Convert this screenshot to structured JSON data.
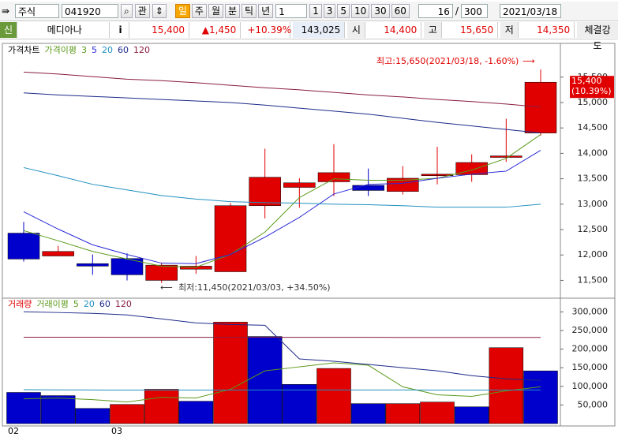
{
  "toolbar": {
    "market": "주식",
    "code": "041920",
    "search_btn": "관",
    "periods": [
      "일",
      "주",
      "월",
      "분",
      "틱",
      "년"
    ],
    "interval": "1",
    "intervals": [
      "1",
      "3",
      "5",
      "10",
      "30",
      "60"
    ],
    "count": "16",
    "separator": "/",
    "total": "300",
    "date": "2021/03/18"
  },
  "quote": {
    "badge": "신",
    "name": "메디아나",
    "info": "i",
    "price": "15,400",
    "change": "▲1,450",
    "rate": "+10.39%",
    "volume": "143,025",
    "open_label": "시",
    "open": "14,400",
    "high_label": "고",
    "high": "15,650",
    "low_label": "저",
    "low": "14,350",
    "strength": "체결강도"
  },
  "chart_data": [
    {
      "type": "candlestick",
      "title": "가격차트",
      "legend_title": "가격이평",
      "open": [
        12430,
        11980,
        11830,
        11930,
        11500,
        11720,
        11670,
        12970,
        13330,
        13440,
        13370,
        13250,
        13560,
        13580,
        13920,
        14400
      ],
      "high": [
        12650,
        12180,
        12010,
        12030,
        11850,
        11980,
        13020,
        14090,
        13510,
        14180,
        13700,
        13750,
        14130,
        13980,
        14680,
        15650
      ],
      "low": [
        11870,
        11980,
        11610,
        11500,
        11450,
        11630,
        11670,
        12720,
        12930,
        13160,
        13160,
        13190,
        13390,
        13440,
        13830,
        14350
      ],
      "close": [
        11920,
        12070,
        11780,
        11610,
        11800,
        11780,
        12970,
        13530,
        13420,
        13620,
        13270,
        13510,
        13590,
        13820,
        13950,
        15400
      ],
      "up_color": "#e00000",
      "down_color": "#0000cc",
      "series": [
        {
          "name": "3",
          "color": "#5a9a1a",
          "values": [
            12480,
            12280,
            12070,
            11920,
            11780,
            11760,
            12010,
            12450,
            13130,
            13500,
            13470,
            13470,
            13510,
            13670,
            13900,
            14370
          ]
        },
        {
          "name": "5",
          "color": "#2a2ad8",
          "values": [
            12850,
            12510,
            12200,
            12010,
            11840,
            11830,
            12010,
            12350,
            12740,
            13200,
            13390,
            13410,
            13510,
            13590,
            13650,
            14060
          ]
        },
        {
          "name": "20",
          "color": "#2090c0",
          "values": [
            13720,
            13560,
            13390,
            13280,
            13170,
            13100,
            13050,
            13030,
            13020,
            13000,
            12990,
            12970,
            12940,
            12940,
            12940,
            13000
          ]
        },
        {
          "name": "60",
          "color": "#1c2a8a",
          "values": [
            15190,
            15150,
            15120,
            15090,
            15060,
            15030,
            15000,
            14950,
            14890,
            14830,
            14770,
            14690,
            14610,
            14540,
            14470,
            14400
          ]
        },
        {
          "name": "120",
          "color": "#8a1c3c",
          "values": [
            15600,
            15560,
            15510,
            15460,
            15430,
            15390,
            15340,
            15290,
            15250,
            15200,
            15150,
            15110,
            15060,
            15020,
            14970,
            14910
          ]
        }
      ],
      "ylim": [
        11150,
        15900
      ],
      "yticks": [
        {
          "value": 11500,
          "label": "11,500"
        },
        {
          "value": 12000,
          "label": "12,000"
        },
        {
          "value": 12500,
          "label": "12,500"
        },
        {
          "value": 13000,
          "label": "13,000"
        },
        {
          "value": 13500,
          "label": "13,500"
        },
        {
          "value": 14000,
          "label": "14,000"
        },
        {
          "value": 14500,
          "label": "14,500"
        },
        {
          "value": 15000,
          "label": "15,000"
        },
        {
          "value": 15500,
          "label": "15,500"
        }
      ],
      "last_label": {
        "value": 15400,
        "label": "15,400",
        "change": "(10.39%)"
      },
      "annotations": [
        "최고:15,650(2021/03/18, -1.60%)",
        "최저:11,450(2021/03/03, +34.50%)"
      ]
    },
    {
      "type": "bar",
      "title": "거래량",
      "legend_title": "거래이평",
      "categories": [
        "02",
        null,
        null,
        "03",
        null,
        null,
        null,
        null,
        null,
        null,
        null,
        null,
        null,
        null,
        null,
        null
      ],
      "values": [
        83700,
        75100,
        40800,
        51500,
        92300,
        60100,
        272500,
        233900,
        105200,
        148100,
        53700,
        53700,
        57900,
        45100,
        203900,
        141600
      ],
      "colors": [
        "#0000cc",
        "#0000cc",
        "#0000cc",
        "#e00000",
        "#e00000",
        "#0000cc",
        "#e00000",
        "#0000cc",
        "#0000cc",
        "#e00000",
        "#0000cc",
        "#e00000",
        "#e00000",
        "#0000cc",
        "#e00000",
        "#0000cc"
      ],
      "series": [
        {
          "name": "5",
          "color": "#5a9a1a",
          "values": [
            66500,
            68700,
            64400,
            57900,
            70800,
            68700,
            92300,
            141600,
            152400,
            163100,
            156700,
            98700,
            77300,
            73000,
            88000,
            98700
          ]
        },
        {
          "name": "20",
          "color": "#2090c0",
          "values": [
            91000,
            90500,
            90200,
            90000,
            90000,
            90000,
            90100,
            90300,
            90400,
            90400,
            90300,
            90200,
            90100,
            90000,
            90100,
            90300
          ]
        },
        {
          "name": "60",
          "color": "#1c2a8a",
          "values": [
            300400,
            298300,
            296100,
            291900,
            281100,
            270400,
            266100,
            264000,
            173800,
            167400,
            158800,
            150200,
            141600,
            128800,
            120200,
            115900
          ]
        },
        {
          "name": "120",
          "color": "#8a1c3c",
          "values": [
            232000,
            231900,
            231900,
            231800,
            231800,
            231700,
            231700,
            231700,
            231600,
            231600,
            231600,
            231500,
            231500,
            231500,
            231400,
            231400
          ]
        }
      ],
      "ylim": [
        0,
        322000
      ],
      "yticks": [
        {
          "value": 50000,
          "label": "50,000"
        },
        {
          "value": 100000,
          "label": "100,000"
        },
        {
          "value": 150000,
          "label": "150,000"
        },
        {
          "value": 200000,
          "label": "200,000"
        },
        {
          "value": 250000,
          "label": "250,000"
        },
        {
          "value": 300000,
          "label": "300,000"
        }
      ]
    }
  ]
}
